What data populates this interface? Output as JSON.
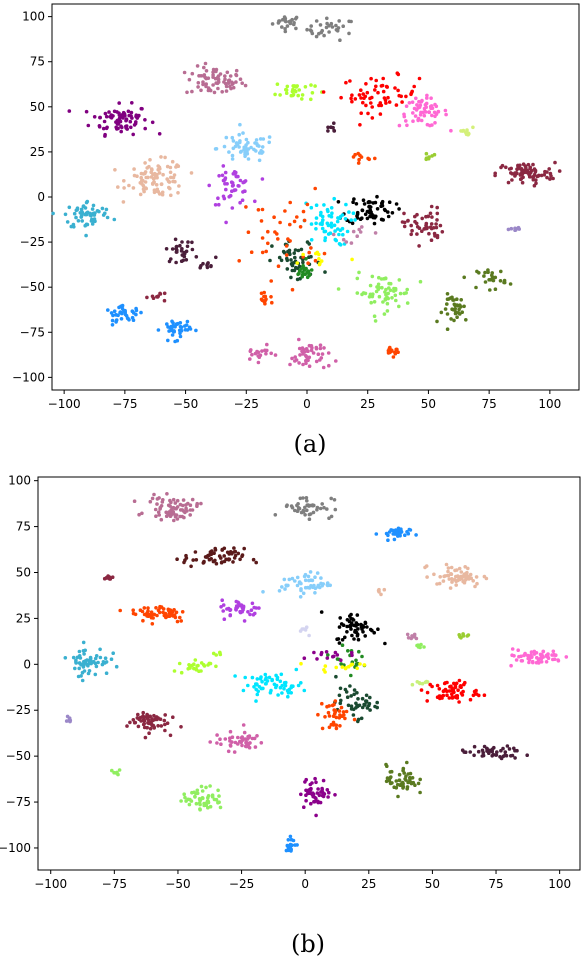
{
  "chart_data": [
    {
      "type": "scatter",
      "panel_label": "(a)",
      "xlim": [
        -105,
        112
      ],
      "ylim": [
        -107,
        107
      ],
      "xticks": [
        "−100",
        "−75",
        "−50",
        "−25",
        "0",
        "25",
        "50",
        "75",
        "100"
      ],
      "xtick_values": [
        -100,
        -75,
        -50,
        -25,
        0,
        25,
        50,
        75,
        100
      ],
      "yticks": [
        "−100",
        "−75",
        "−50",
        "−25",
        "0",
        "25",
        "50",
        "75",
        "100"
      ],
      "ytick_values": [
        -100,
        -75,
        -50,
        -25,
        0,
        25,
        50,
        75,
        100
      ],
      "grid": false,
      "clusters": [
        {
          "color": "#7f7f7f",
          "cx": -8,
          "cy": 97,
          "sx": 3,
          "sy": 2,
          "n": 22
        },
        {
          "color": "#7f7f7f",
          "cx": 10,
          "cy": 93,
          "sx": 5,
          "sy": 3,
          "n": 30
        },
        {
          "color": "#b86d93",
          "cx": -38,
          "cy": 64,
          "sx": 6,
          "sy": 4,
          "n": 70
        },
        {
          "color": "#800080",
          "cx": -77,
          "cy": 43,
          "sx": 6,
          "sy": 4,
          "n": 80
        },
        {
          "color": "#adff2f",
          "cx": -5,
          "cy": 59,
          "sx": 4,
          "sy": 3,
          "n": 30
        },
        {
          "color": "#ff0000",
          "cx": 30,
          "cy": 57,
          "sx": 8,
          "sy": 5,
          "n": 60
        },
        {
          "color": "#ff69d4",
          "cx": 48,
          "cy": 47,
          "sx": 5,
          "sy": 4,
          "n": 60
        },
        {
          "color": "#87cefa",
          "cx": -25,
          "cy": 27,
          "sx": 6,
          "sy": 4,
          "n": 55
        },
        {
          "color": "#e8b8a0",
          "cx": -62,
          "cy": 10,
          "sx": 6,
          "sy": 5,
          "n": 90
        },
        {
          "color": "#b040e0",
          "cx": -31,
          "cy": 6,
          "sx": 4,
          "sy": 5,
          "n": 50
        },
        {
          "color": "#8b2842",
          "cx": 90,
          "cy": 13,
          "sx": 6,
          "sy": 3,
          "n": 80
        },
        {
          "color": "#3ab0d0",
          "cx": -90,
          "cy": -10,
          "sx": 5,
          "sy": 4,
          "n": 60
        },
        {
          "color": "#000000",
          "cx": 26,
          "cy": -7,
          "sx": 5,
          "sy": 4,
          "n": 60
        },
        {
          "color": "#00e5ff",
          "cx": 8,
          "cy": -15,
          "sx": 5,
          "sy": 6,
          "n": 60
        },
        {
          "color": "#8b2842",
          "cx": 48,
          "cy": -16,
          "sx": 4,
          "sy": 5,
          "n": 50
        },
        {
          "color": "#1a4a30",
          "cx": -4,
          "cy": -36,
          "sx": 5,
          "sy": 6,
          "n": 50
        },
        {
          "color": "#ff4500",
          "cx": -10,
          "cy": -20,
          "sx": 8,
          "sy": 12,
          "n": 40
        },
        {
          "color": "#4a1e3a",
          "cx": -52,
          "cy": -30,
          "sx": 3,
          "sy": 3,
          "n": 30
        },
        {
          "color": "#90ee60",
          "cx": 31,
          "cy": -53,
          "sx": 6,
          "sy": 5,
          "n": 60
        },
        {
          "color": "#5a7a20",
          "cx": 62,
          "cy": -62,
          "sx": 3,
          "sy": 4,
          "n": 35
        },
        {
          "color": "#5a7a20",
          "cx": 76,
          "cy": -45,
          "sx": 3,
          "sy": 3,
          "n": 25
        },
        {
          "color": "#1e90ff",
          "cx": -75,
          "cy": -65,
          "sx": 4,
          "sy": 2,
          "n": 35
        },
        {
          "color": "#1e90ff",
          "cx": -54,
          "cy": -73,
          "sx": 3,
          "sy": 3,
          "n": 40
        },
        {
          "color": "#d060a8",
          "cx": 1,
          "cy": -88,
          "sx": 4,
          "sy": 4,
          "n": 45
        },
        {
          "color": "#d060a8",
          "cx": -20,
          "cy": -87,
          "sx": 3,
          "sy": 2,
          "n": 18
        },
        {
          "color": "#ff4500",
          "cx": 35,
          "cy": -85,
          "sx": 1.5,
          "sy": 1.5,
          "n": 15
        },
        {
          "color": "#ff4500",
          "cx": -17,
          "cy": -57,
          "sx": 1.5,
          "sy": 1.5,
          "n": 12
        },
        {
          "color": "#8b2842",
          "cx": -62,
          "cy": -55,
          "sx": 3,
          "sy": 1,
          "n": 10
        },
        {
          "color": "#4a1e3a",
          "cx": -40,
          "cy": -38,
          "sx": 1.5,
          "sy": 2,
          "n": 10
        },
        {
          "color": "#9b88c8",
          "cx": 86,
          "cy": -18,
          "sx": 1.2,
          "sy": 1,
          "n": 8
        },
        {
          "color": "#4a1e3a",
          "cx": 10,
          "cy": 38,
          "sx": 1.2,
          "sy": 1,
          "n": 8
        },
        {
          "color": "#d4f07a",
          "cx": 65,
          "cy": 35,
          "sx": 2,
          "sy": 2,
          "n": 10
        },
        {
          "color": "#9acd32",
          "cx": 50,
          "cy": 22,
          "sx": 1.5,
          "sy": 1.5,
          "n": 8
        },
        {
          "color": "#ff4500",
          "cx": 22,
          "cy": 22,
          "sx": 2,
          "sy": 1.5,
          "n": 10
        },
        {
          "color": "#228b22",
          "cx": -1,
          "cy": -42,
          "sx": 2,
          "sy": 3,
          "n": 20
        },
        {
          "color": "#ffff00",
          "cx": 5,
          "cy": -34,
          "sx": 6,
          "sy": 3,
          "n": 10
        },
        {
          "color": "#c080a8",
          "cx": 20,
          "cy": -20,
          "sx": 4,
          "sy": 4,
          "n": 10
        }
      ]
    },
    {
      "type": "scatter",
      "panel_label": "(b)",
      "xlim": [
        -105,
        108
      ],
      "ylim": [
        -112,
        102
      ],
      "xticks": [
        "−100",
        "−75",
        "−50",
        "−25",
        "0",
        "25",
        "50",
        "75",
        "100"
      ],
      "xtick_values": [
        -100,
        -75,
        -50,
        -25,
        0,
        25,
        50,
        75,
        100
      ],
      "yticks": [
        "−100",
        "−75",
        "−50",
        "−25",
        "0",
        "25",
        "50",
        "75",
        "100"
      ],
      "ytick_values": [
        -100,
        -75,
        -50,
        -25,
        0,
        25,
        50,
        75,
        100
      ],
      "grid": false,
      "clusters": [
        {
          "color": "#b86d93",
          "cx": -52,
          "cy": 85,
          "sx": 5,
          "sy": 3,
          "n": 70
        },
        {
          "color": "#7f7f7f",
          "cx": 1,
          "cy": 86,
          "sx": 5,
          "sy": 3,
          "n": 45
        },
        {
          "color": "#1e90ff",
          "cx": 35,
          "cy": 71,
          "sx": 3,
          "sy": 2,
          "n": 30
        },
        {
          "color": "#5a1a1a",
          "cx": -36,
          "cy": 58,
          "sx": 6,
          "sy": 2.5,
          "n": 60
        },
        {
          "color": "#e8b8a0",
          "cx": 60,
          "cy": 48,
          "sx": 5,
          "sy": 3,
          "n": 60
        },
        {
          "color": "#87cefa",
          "cx": 0,
          "cy": 44,
          "sx": 5,
          "sy": 3,
          "n": 50
        },
        {
          "color": "#ff4500",
          "cx": -57,
          "cy": 28,
          "sx": 6,
          "sy": 2.5,
          "n": 55
        },
        {
          "color": "#b040e0",
          "cx": -25,
          "cy": 30,
          "sx": 4,
          "sy": 2.5,
          "n": 40
        },
        {
          "color": "#000000",
          "cx": 20,
          "cy": 20,
          "sx": 4,
          "sy": 4,
          "n": 55
        },
        {
          "color": "#3ab0d0",
          "cx": -85,
          "cy": 2,
          "sx": 4,
          "sy": 4,
          "n": 60
        },
        {
          "color": "#ff69d4",
          "cx": 90,
          "cy": 4,
          "sx": 6,
          "sy": 2,
          "n": 60
        },
        {
          "color": "#adff2f",
          "cx": -43,
          "cy": -1,
          "sx": 3,
          "sy": 2,
          "n": 25
        },
        {
          "color": "#00e5ff",
          "cx": -13,
          "cy": -11,
          "sx": 6,
          "sy": 3,
          "n": 60
        },
        {
          "color": "#ff0000",
          "cx": 58,
          "cy": -15,
          "sx": 5,
          "sy": 3,
          "n": 60
        },
        {
          "color": "#1a4a30",
          "cx": 20,
          "cy": -21,
          "sx": 4,
          "sy": 4,
          "n": 45
        },
        {
          "color": "#ff4500",
          "cx": 11,
          "cy": -28,
          "sx": 3,
          "sy": 5,
          "n": 35
        },
        {
          "color": "#8b2842",
          "cx": -62,
          "cy": -31,
          "sx": 4,
          "sy": 3,
          "n": 60
        },
        {
          "color": "#d060a8",
          "cx": -26,
          "cy": -42,
          "sx": 5,
          "sy": 2.5,
          "n": 45
        },
        {
          "color": "#4a1e3a",
          "cx": 73,
          "cy": -48,
          "sx": 6,
          "sy": 1.8,
          "n": 45
        },
        {
          "color": "#5a7a20",
          "cx": 38,
          "cy": -63,
          "sx": 3,
          "sy": 4,
          "n": 50
        },
        {
          "color": "#90ee60",
          "cx": -40,
          "cy": -73,
          "sx": 4,
          "sy": 3,
          "n": 50
        },
        {
          "color": "#8b008b",
          "cx": 4,
          "cy": -70,
          "sx": 3,
          "sy": 4,
          "n": 50
        },
        {
          "color": "#1e90ff",
          "cx": -5,
          "cy": -98,
          "sx": 1.5,
          "sy": 2,
          "n": 18
        },
        {
          "color": "#9b88c8",
          "cx": -93,
          "cy": -30,
          "sx": 0.8,
          "sy": 1,
          "n": 8
        },
        {
          "color": "#90ee60",
          "cx": -74,
          "cy": -59,
          "sx": 1,
          "sy": 0.8,
          "n": 6
        },
        {
          "color": "#8b2842",
          "cx": -77,
          "cy": 47,
          "sx": 1,
          "sy": 0.8,
          "n": 8
        },
        {
          "color": "#c080a8",
          "cx": 42,
          "cy": 15,
          "sx": 1.2,
          "sy": 1,
          "n": 10
        },
        {
          "color": "#90ee60",
          "cx": 45,
          "cy": 10,
          "sx": 1,
          "sy": 1,
          "n": 6
        },
        {
          "color": "#9acd32",
          "cx": 62,
          "cy": 16,
          "sx": 1,
          "sy": 0.8,
          "n": 8
        },
        {
          "color": "#228b22",
          "cx": 16,
          "cy": 3,
          "sx": 3,
          "sy": 3,
          "n": 20
        },
        {
          "color": "#ffff00",
          "cx": 16,
          "cy": -1,
          "sx": 6,
          "sy": 1.5,
          "n": 14
        },
        {
          "color": "#8b008b",
          "cx": 6,
          "cy": 5,
          "sx": 5,
          "sy": 1.5,
          "n": 14
        },
        {
          "color": "#d4d4f0",
          "cx": 0,
          "cy": 18,
          "sx": 1.5,
          "sy": 1.5,
          "n": 6
        },
        {
          "color": "#e8b8a0",
          "cx": 30,
          "cy": 40,
          "sx": 1,
          "sy": 1,
          "n": 5
        },
        {
          "color": "#adff2f",
          "cx": -35,
          "cy": 6,
          "sx": 1,
          "sy": 0.5,
          "n": 5
        },
        {
          "color": "#c8f07a",
          "cx": 45,
          "cy": -10,
          "sx": 2,
          "sy": 1,
          "n": 8
        }
      ]
    }
  ]
}
